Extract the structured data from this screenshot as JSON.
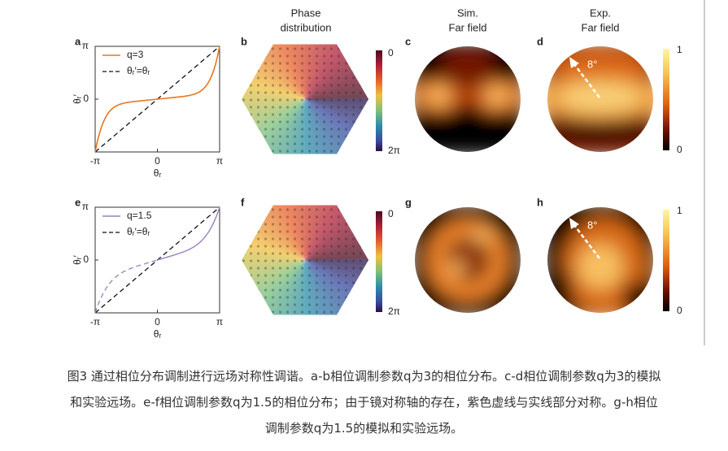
{
  "column_titles": [
    [
      "Phase",
      "distribution"
    ],
    [
      "Sim.",
      "Far field"
    ],
    [
      "Exp.",
      "Far field"
    ]
  ],
  "rows": [
    {
      "plot": {
        "label": "a",
        "legend": [
          "q=3",
          "θᵣ′=θᵣ"
        ],
        "y_ticks": [
          "π",
          "0"
        ],
        "x_ticks": [
          "-π",
          "0",
          "π"
        ],
        "x_label": "θᵣ",
        "y_label": "θᵣ′"
      },
      "phase": {
        "label": "b",
        "colorbar_ticks": [
          "0",
          "2π"
        ]
      },
      "sim": {
        "label": "c"
      },
      "exp": {
        "label": "d",
        "angle": "8°",
        "colorbar_ticks": [
          "1",
          "0"
        ]
      }
    },
    {
      "plot": {
        "label": "e",
        "legend": [
          "q=1.5",
          "θᵣ′=θᵣ"
        ],
        "y_ticks": [
          "π",
          "0"
        ],
        "x_ticks": [
          "-π",
          "0",
          "π"
        ],
        "x_label": "θᵣ",
        "y_label": "θᵣ′"
      },
      "phase": {
        "label": "f",
        "colorbar_ticks": [
          "0",
          "2π"
        ]
      },
      "sim": {
        "label": "g"
      },
      "exp": {
        "label": "h",
        "angle": "8°",
        "colorbar_ticks": [
          "1",
          "0"
        ]
      }
    }
  ],
  "caption": [
    "图3 通过相位分布调制进行远场对称性调谐。a-b相位调制参数q为3的相位分布。c-d相位调制参数q为3的模拟",
    "和实验远场。e-f相位调制参数q为1.5的相位分布；由于镜对称轴的存在，紫色虚线与实线部分对称。g-h相位",
    "调制参数q为1.5的模拟和实验远场。"
  ]
}
